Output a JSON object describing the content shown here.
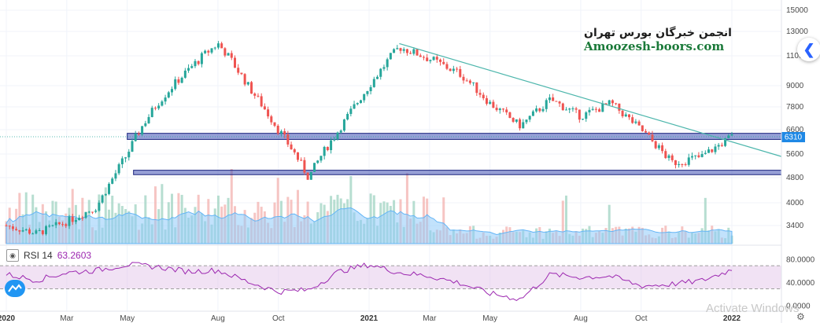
{
  "watermark": {
    "persian": "انجمن خبرگان بورس تهران",
    "english": "Amoozesh-boors.com"
  },
  "rsi": {
    "label": "RSI 14",
    "value": "63.2603",
    "axis_ticks": [
      "80.0000",
      "40.0000",
      "0.0000"
    ],
    "overbought": 70,
    "oversold": 30,
    "color": "#9c27b0"
  },
  "price_badge": "6310",
  "activate_text": "Activate Windows",
  "icons": {
    "eye": "eye-icon",
    "nav": "chevron-left-icon",
    "settings": "gear-icon",
    "logo": "tradingview-logo-icon"
  },
  "colors": {
    "up": "#26a69a",
    "down": "#ef5350",
    "trendline": "#4db6ac",
    "zone": "#3f51b5",
    "volume_ma": "#64b5f6",
    "price_badge": "#1e88e5"
  },
  "chart_data": {
    "type": "candlestick",
    "y_axis_ticks": [
      "15000",
      "13000",
      "11000",
      "9000",
      "7800",
      "6600",
      "5600",
      "4800",
      "4000",
      "3400"
    ],
    "x_axis_ticks": [
      "2020",
      "Mar",
      "May",
      "Aug",
      "Oct",
      "2021",
      "Mar",
      "May",
      "Aug",
      "Oct",
      "2022"
    ],
    "current_price": 6310,
    "support_zones": [
      {
        "low": 6200,
        "high": 6450
      },
      {
        "low": 4900,
        "high": 5050
      }
    ],
    "trendline": {
      "from": {
        "x": "2021-02",
        "y": 12000
      },
      "to": {
        "x": "2022-01",
        "y": 6100
      }
    },
    "price_path": [
      {
        "x": "2020-01",
        "y": 3400
      },
      {
        "x": "2020-02",
        "y": 3200
      },
      {
        "x": "2020-03",
        "y": 3500
      },
      {
        "x": "2020-04",
        "y": 3900
      },
      {
        "x": "2020-05",
        "y": 5600
      },
      {
        "x": "2020-06",
        "y": 8000
      },
      {
        "x": "2020-07",
        "y": 10000
      },
      {
        "x": "2020-08",
        "y": 12000
      },
      {
        "x": "2020-09",
        "y": 9000
      },
      {
        "x": "2020-10",
        "y": 6600
      },
      {
        "x": "2020-11",
        "y": 4800
      },
      {
        "x": "2020-12",
        "y": 6600
      },
      {
        "x": "2021-01",
        "y": 9000
      },
      {
        "x": "2021-02",
        "y": 11700
      },
      {
        "x": "2021-03",
        "y": 10800
      },
      {
        "x": "2021-04",
        "y": 9800
      },
      {
        "x": "2021-05",
        "y": 8000
      },
      {
        "x": "2021-06",
        "y": 6800
      },
      {
        "x": "2021-07",
        "y": 8200
      },
      {
        "x": "2021-08",
        "y": 7300
      },
      {
        "x": "2021-09",
        "y": 8000
      },
      {
        "x": "2021-10",
        "y": 6600
      },
      {
        "x": "2021-11",
        "y": 5300
      },
      {
        "x": "2021-12",
        "y": 5500
      },
      {
        "x": "2022-01",
        "y": 6310
      }
    ],
    "rsi_path": [
      {
        "x": "2020-01",
        "y": 55
      },
      {
        "x": "2020-02",
        "y": 45
      },
      {
        "x": "2020-03",
        "y": 58
      },
      {
        "x": "2020-04",
        "y": 62
      },
      {
        "x": "2020-05",
        "y": 72
      },
      {
        "x": "2020-06",
        "y": 68
      },
      {
        "x": "2020-07",
        "y": 60
      },
      {
        "x": "2020-08",
        "y": 62
      },
      {
        "x": "2020-09",
        "y": 42
      },
      {
        "x": "2020-10",
        "y": 25
      },
      {
        "x": "2020-11",
        "y": 28
      },
      {
        "x": "2020-12",
        "y": 60
      },
      {
        "x": "2021-01",
        "y": 72
      },
      {
        "x": "2021-02",
        "y": 58
      },
      {
        "x": "2021-03",
        "y": 52
      },
      {
        "x": "2021-04",
        "y": 40
      },
      {
        "x": "2021-05",
        "y": 22
      },
      {
        "x": "2021-06",
        "y": 12
      },
      {
        "x": "2021-07",
        "y": 55
      },
      {
        "x": "2021-08",
        "y": 50
      },
      {
        "x": "2021-09",
        "y": 52
      },
      {
        "x": "2021-10",
        "y": 35
      },
      {
        "x": "2021-11",
        "y": 38
      },
      {
        "x": "2021-12",
        "y": 44
      },
      {
        "x": "2022-01",
        "y": 63.26
      }
    ],
    "grid": true
  }
}
